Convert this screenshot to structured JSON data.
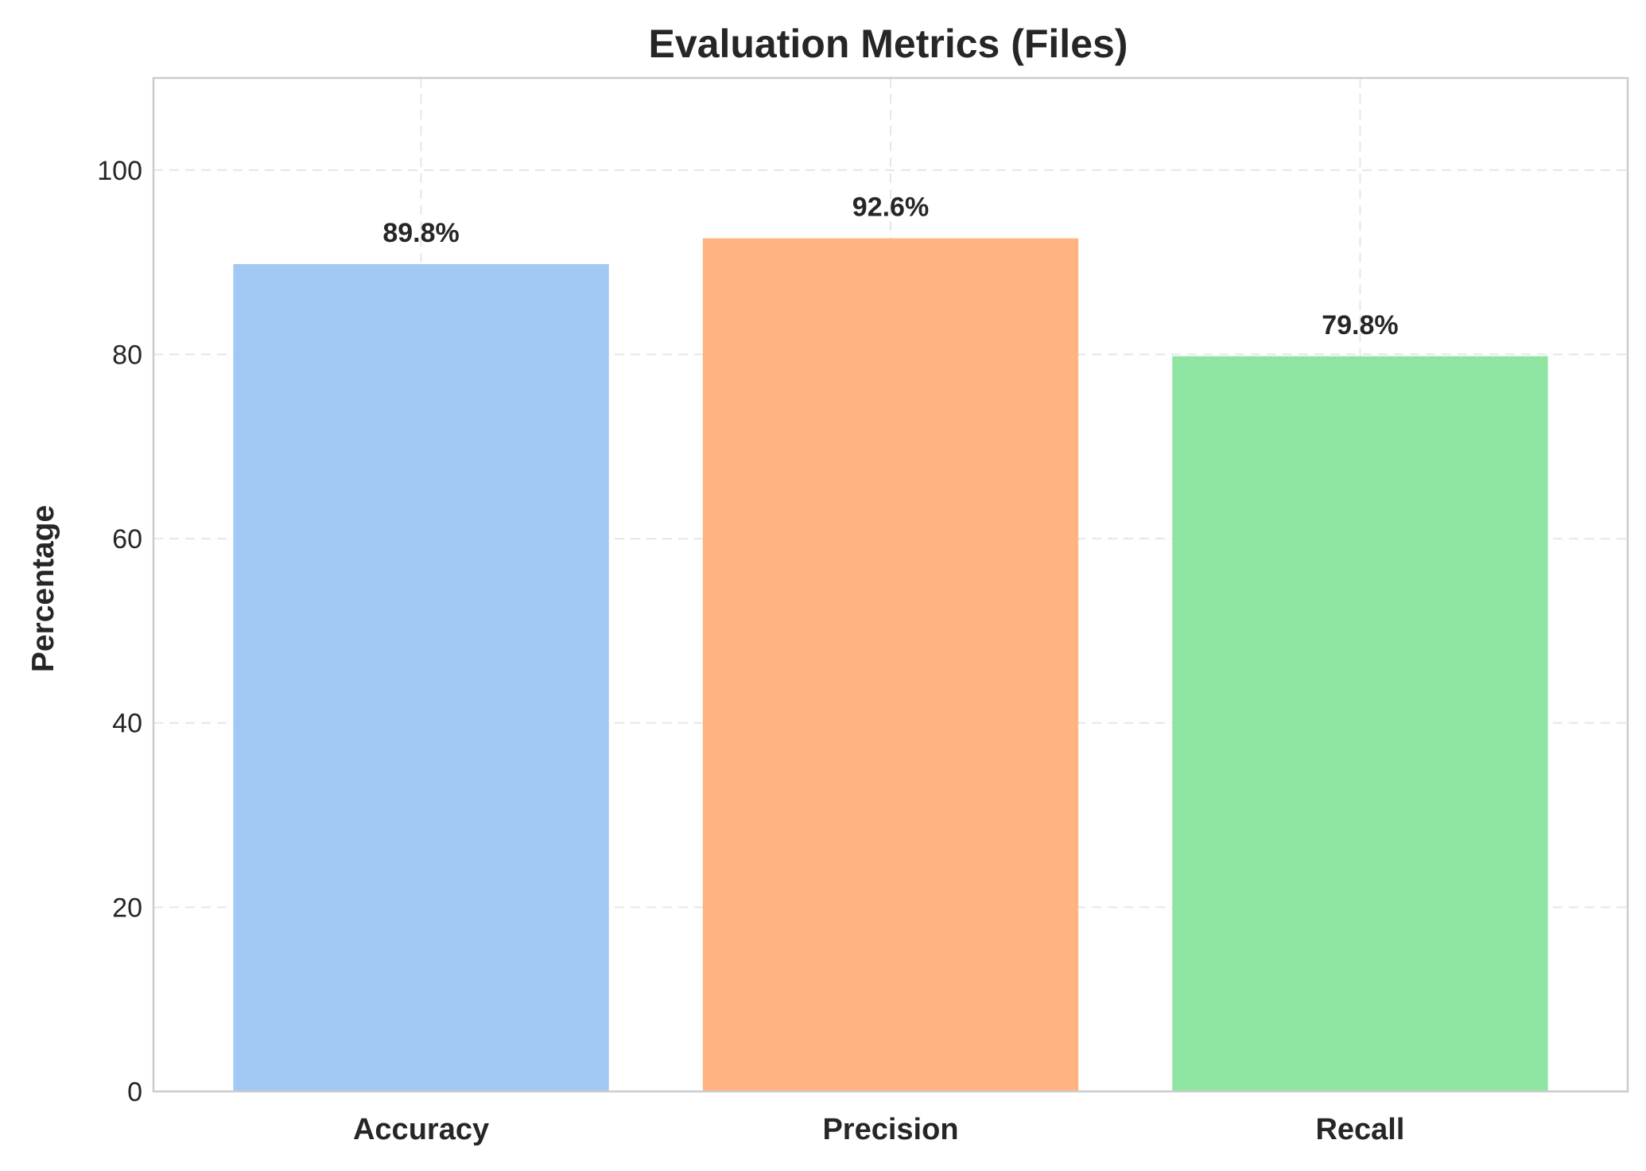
{
  "chart_data": {
    "type": "bar",
    "title": "Evaluation Metrics (Files)",
    "xlabel": "",
    "ylabel": "Percentage",
    "categories": [
      "Accuracy",
      "Precision",
      "Recall"
    ],
    "values": [
      89.8,
      92.6,
      79.8
    ],
    "data_labels": [
      "89.8%",
      "92.6%",
      "79.8%"
    ],
    "colors": [
      "#a1c9f4",
      "#ffb482",
      "#8de5a1"
    ],
    "ylim": [
      0,
      110
    ],
    "yticks": [
      0,
      20,
      40,
      60,
      80,
      100
    ],
    "grid": true,
    "grid_color": "#e6e6e6",
    "legend": false
  }
}
